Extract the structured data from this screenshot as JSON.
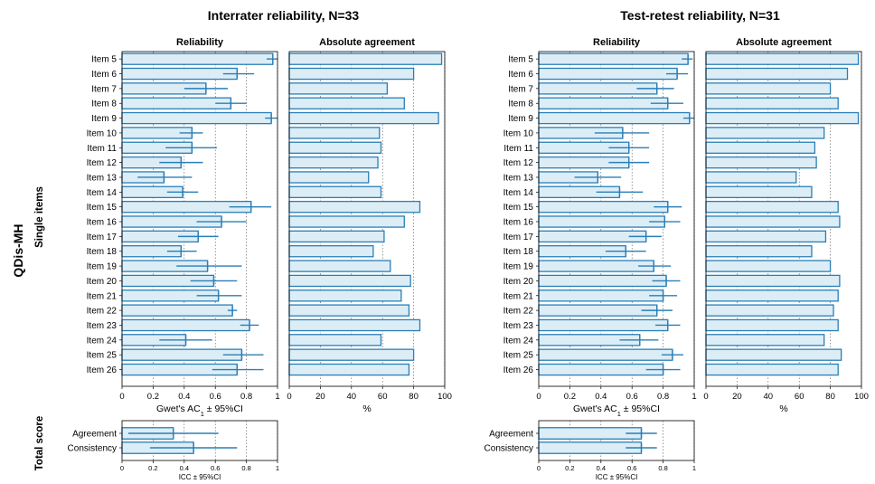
{
  "figure": {
    "side_title": "QDis-MH",
    "row_group_single": "Single items",
    "row_group_total": "Total score"
  },
  "colors": {
    "bar_fill": "#dcedf6",
    "bar_edge": "#2a7fb7",
    "grid": "#555555"
  },
  "chart_data": [
    {
      "title": "Interrater reliability, N=33",
      "items": [
        "Item 5",
        "Item 6",
        "Item 7",
        "Item 8",
        "Item 9",
        "Item 10",
        "Item 11",
        "Item 12",
        "Item 13",
        "Item 14",
        "Item 15",
        "Item 16",
        "Item 17",
        "Item 18",
        "Item 19",
        "Item 20",
        "Item 21",
        "Item 22",
        "Item 23",
        "Item 24",
        "Item 25",
        "Item 26"
      ],
      "reliability": {
        "type": "bar",
        "orientation": "horizontal",
        "subtitle": "Reliability",
        "xlabel": "Gwet's AC",
        "xlabel_sub": "1",
        "xlabel_suffix": " ± 95%CI",
        "xlim": [
          0,
          1
        ],
        "ticks": [
          "0",
          "0.2",
          "0.4",
          "0.6",
          "0.8",
          "1"
        ],
        "values": [
          0.97,
          0.74,
          0.54,
          0.7,
          0.96,
          0.45,
          0.45,
          0.38,
          0.27,
          0.39,
          0.83,
          0.64,
          0.49,
          0.38,
          0.55,
          0.59,
          0.62,
          0.71,
          0.82,
          0.41,
          0.77,
          0.74
        ],
        "ci_low": [
          0.93,
          0.65,
          0.4,
          0.6,
          0.92,
          0.37,
          0.28,
          0.24,
          0.1,
          0.29,
          0.69,
          0.48,
          0.36,
          0.29,
          0.35,
          0.44,
          0.48,
          0.68,
          0.76,
          0.24,
          0.65,
          0.58
        ],
        "ci_high": [
          1.0,
          0.85,
          0.68,
          0.8,
          1.0,
          0.52,
          0.61,
          0.52,
          0.45,
          0.49,
          0.96,
          0.8,
          0.62,
          0.48,
          0.77,
          0.74,
          0.77,
          0.74,
          0.88,
          0.58,
          0.91,
          0.91
        ]
      },
      "agreement": {
        "type": "bar",
        "orientation": "horizontal",
        "subtitle": "Absolute agreement",
        "xlabel": "%",
        "xlim": [
          0,
          100
        ],
        "ticks": [
          "0",
          "20",
          "40",
          "60",
          "80",
          "100"
        ],
        "values": [
          98,
          80,
          63,
          74,
          96,
          58,
          59,
          57,
          51,
          59,
          84,
          74,
          61,
          54,
          65,
          78,
          72,
          77,
          84,
          59,
          80,
          77
        ]
      },
      "total": {
        "type": "bar",
        "orientation": "horizontal",
        "categories": [
          "Agreement",
          "Consistency"
        ],
        "xlabel": "ICC ± 95%CI",
        "xlim": [
          0,
          1
        ],
        "ticks": [
          "0",
          "0.2",
          "0.4",
          "0.6",
          "0.8",
          "1"
        ],
        "values": [
          0.33,
          0.46
        ],
        "ci_low": [
          0.04,
          0.18
        ],
        "ci_high": [
          0.62,
          0.74
        ]
      }
    },
    {
      "title": "Test-retest reliability, N=31",
      "items": [
        "Item 5",
        "Item 6",
        "Item 7",
        "Item 8",
        "Item 9",
        "Item 10",
        "Item 11",
        "Item 12",
        "Item 13",
        "Item 14",
        "Item 15",
        "Item 16",
        "Item 17",
        "Item 18",
        "Item 19",
        "Item 20",
        "Item 21",
        "Item 22",
        "Item 23",
        "Item 24",
        "Item 25",
        "Item 26"
      ],
      "reliability": {
        "type": "bar",
        "orientation": "horizontal",
        "subtitle": "Reliability",
        "xlabel": "Gwet's AC",
        "xlabel_sub": "1",
        "xlabel_suffix": " ± 95%CI",
        "xlim": [
          0,
          1
        ],
        "ticks": [
          "0",
          "0.2",
          "0.4",
          "0.6",
          "0.8",
          "1"
        ],
        "values": [
          0.96,
          0.89,
          0.76,
          0.83,
          0.97,
          0.54,
          0.58,
          0.58,
          0.38,
          0.52,
          0.83,
          0.81,
          0.69,
          0.56,
          0.74,
          0.82,
          0.8,
          0.76,
          0.83,
          0.65,
          0.86,
          0.8
        ],
        "ci_low": [
          0.92,
          0.82,
          0.63,
          0.72,
          0.93,
          0.36,
          0.45,
          0.45,
          0.23,
          0.37,
          0.74,
          0.71,
          0.58,
          0.43,
          0.64,
          0.73,
          0.71,
          0.66,
          0.75,
          0.52,
          0.79,
          0.69
        ],
        "ci_high": [
          0.99,
          0.96,
          0.87,
          0.93,
          1.0,
          0.71,
          0.71,
          0.71,
          0.53,
          0.67,
          0.92,
          0.91,
          0.79,
          0.69,
          0.85,
          0.91,
          0.89,
          0.86,
          0.91,
          0.77,
          0.93,
          0.91
        ]
      },
      "agreement": {
        "type": "bar",
        "orientation": "horizontal",
        "subtitle": "Absolute agreement",
        "xlabel": "%",
        "xlim": [
          0,
          100
        ],
        "ticks": [
          "0",
          "20",
          "40",
          "60",
          "80",
          "100"
        ],
        "values": [
          98,
          91,
          80,
          85,
          98,
          76,
          70,
          71,
          58,
          68,
          85,
          86,
          77,
          68,
          80,
          86,
          85,
          82,
          85,
          76,
          87,
          85
        ]
      },
      "total": {
        "type": "bar",
        "orientation": "horizontal",
        "categories": [
          "Agreement",
          "Consistency"
        ],
        "xlabel": "ICC ± 95%CI",
        "xlim": [
          0,
          1
        ],
        "ticks": [
          "0",
          "0.2",
          "0.4",
          "0.6",
          "0.8",
          "1"
        ],
        "values": [
          0.66,
          0.66
        ],
        "ci_low": [
          0.56,
          0.56
        ],
        "ci_high": [
          0.76,
          0.76
        ]
      }
    }
  ]
}
